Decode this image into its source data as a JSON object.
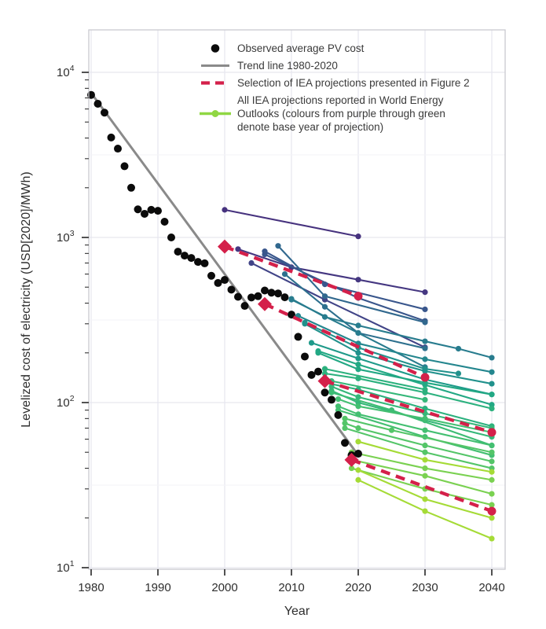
{
  "figure": {
    "xlabel": "Year",
    "ylabel": "Levelized cost of electricity (USD[2020]/MWh)"
  },
  "legend": {
    "items": [
      {
        "key": "observed",
        "label_lines": [
          "Observed average PV cost"
        ]
      },
      {
        "key": "trend",
        "label_lines": [
          "Trend line 1980-2020"
        ]
      },
      {
        "key": "selection",
        "label_lines": [
          "Selection of IEA projections presented in Figure 2"
        ]
      },
      {
        "key": "all",
        "label_lines": [
          "All IEA projections reported in World Energy",
          "Outlooks (colours from purple through green",
          "denote base year of projection)"
        ]
      }
    ]
  },
  "chart_data": {
    "type": "line",
    "title": "",
    "xlabel": "Year",
    "ylabel": "Levelized cost of electricity (USD[2020]/MWh)",
    "x_ticks": [
      1980,
      1990,
      2000,
      2010,
      2020,
      2030,
      2040
    ],
    "y_scale": "log",
    "y_ticks": [
      10,
      100,
      1000,
      10000
    ],
    "xlim": [
      1979.6,
      2042
    ],
    "ylim": [
      9.8,
      18000
    ],
    "grid": true,
    "legend_position": "top-right-inside",
    "colors": {
      "observed": "#0b0b0b",
      "trend": "#8a8a8a",
      "selection": "#d4204a",
      "legend_all_sample": "#90d743"
    },
    "observed": {
      "label": "Observed average PV cost",
      "points": [
        [
          1980,
          7300
        ],
        [
          1981,
          6450
        ],
        [
          1982,
          5700
        ],
        [
          1983,
          4030
        ],
        [
          1984,
          3450
        ],
        [
          1985,
          2700
        ],
        [
          1986,
          2000
        ],
        [
          1987,
          1480
        ],
        [
          1988,
          1390
        ],
        [
          1989,
          1470
        ],
        [
          1990,
          1450
        ],
        [
          1991,
          1245
        ],
        [
          1992,
          1000
        ],
        [
          1993,
          820
        ],
        [
          1994,
          776
        ],
        [
          1995,
          751
        ],
        [
          1996,
          711
        ],
        [
          1997,
          697
        ],
        [
          1998,
          586
        ],
        [
          1999,
          530
        ],
        [
          2000,
          553
        ],
        [
          2001,
          483
        ],
        [
          2002,
          437
        ],
        [
          2003,
          385
        ],
        [
          2004,
          433
        ],
        [
          2005,
          441
        ],
        [
          2006,
          477
        ],
        [
          2007,
          463
        ],
        [
          2008,
          458
        ],
        [
          2009,
          434
        ],
        [
          2010,
          341
        ],
        [
          2011,
          250
        ],
        [
          2012,
          190
        ],
        [
          2013,
          147
        ],
        [
          2014,
          154
        ],
        [
          2015,
          115
        ],
        [
          2016,
          104
        ],
        [
          2017,
          84
        ],
        [
          2018,
          57
        ],
        [
          2019,
          48
        ],
        [
          2020,
          49
        ]
      ]
    },
    "trend": {
      "label": "Trend line 1980-2020",
      "points": [
        [
          1980,
          7500
        ],
        [
          2020,
          48
        ]
      ]
    },
    "selection": {
      "label": "Selection of IEA projections presented in Figure 2",
      "lines": [
        {
          "points": [
            [
              2000,
              880
            ],
            [
              2020,
              441
            ]
          ]
        },
        {
          "points": [
            [
              2006,
              395
            ],
            [
              2030,
              142
            ]
          ]
        },
        {
          "points": [
            [
              2015,
              135
            ],
            [
              2040,
              66
            ]
          ]
        },
        {
          "points": [
            [
              2019,
              45
            ],
            [
              2040,
              22
            ]
          ]
        }
      ]
    },
    "projections": {
      "label": "All IEA projections reported in World Energy Outlooks (colours from purple through green denote base year of projection)",
      "lines": [
        {
          "base_year": 2000,
          "color": "#46327e",
          "points": [
            [
              2000,
              1470
            ],
            [
              2020,
              1015
            ]
          ]
        },
        {
          "base_year": 2002,
          "color": "#453781",
          "points": [
            [
              2002,
              850
            ],
            [
              2010,
              660
            ],
            [
              2020,
              555
            ],
            [
              2030,
              466
            ]
          ]
        },
        {
          "base_year": 2004,
          "color": "#414487",
          "points": [
            [
              2004,
              700
            ],
            [
              2015,
              420
            ],
            [
              2030,
              216
            ]
          ]
        },
        {
          "base_year": 2006,
          "color": "#39568c",
          "points": [
            [
              2006,
              824
            ],
            [
              2015,
              520
            ],
            [
              2030,
              367
            ]
          ]
        },
        {
          "base_year": 2006,
          "color": "#39568c",
          "points": [
            [
              2006,
              790
            ],
            [
              2020,
              430
            ],
            [
              2030,
              312
            ]
          ]
        },
        {
          "base_year": 2008,
          "color": "#31688e",
          "points": [
            [
              2008,
              889
            ],
            [
              2015,
              441
            ],
            [
              2030,
              306
            ]
          ]
        },
        {
          "base_year": 2009,
          "color": "#2d708e",
          "points": [
            [
              2009,
              600
            ],
            [
              2015,
              380
            ],
            [
              2020,
              264
            ],
            [
              2030,
              213
            ]
          ]
        },
        {
          "base_year": 2010,
          "color": "#287c8e",
          "points": [
            [
              2010,
              425
            ],
            [
              2015,
              330
            ],
            [
              2020,
              293
            ],
            [
              2030,
              235
            ],
            [
              2035,
              212
            ],
            [
              2040,
              187
            ]
          ]
        },
        {
          "base_year": 2010,
          "color": "#287c8e",
          "points": [
            [
              2010,
              420
            ],
            [
              2020,
              264
            ],
            [
              2030,
              164
            ]
          ]
        },
        {
          "base_year": 2011,
          "color": "#24868e",
          "points": [
            [
              2011,
              335
            ],
            [
              2020,
              228
            ],
            [
              2030,
              183
            ],
            [
              2040,
              153
            ]
          ]
        },
        {
          "base_year": 2012,
          "color": "#21918c",
          "points": [
            [
              2012,
              305
            ],
            [
              2020,
              215
            ],
            [
              2030,
              160
            ],
            [
              2035,
              150
            ]
          ]
        },
        {
          "base_year": 2012,
          "color": "#21918c",
          "points": [
            [
              2012,
              300
            ],
            [
              2020,
              200
            ],
            [
              2030,
              155
            ],
            [
              2040,
              130
            ]
          ]
        },
        {
          "base_year": 2013,
          "color": "#1f9a8a",
          "points": [
            [
              2013,
              230
            ],
            [
              2020,
              185
            ],
            [
              2030,
              138
            ],
            [
              2040,
              112
            ]
          ]
        },
        {
          "base_year": 2014,
          "color": "#22a884",
          "points": [
            [
              2014,
              205
            ],
            [
              2020,
              170
            ],
            [
              2030,
              128
            ],
            [
              2040,
              97
            ]
          ]
        },
        {
          "base_year": 2014,
          "color": "#22a884",
          "points": [
            [
              2014,
              200
            ],
            [
              2020,
              159
            ],
            [
              2030,
              132
            ],
            [
              2040,
              112
            ]
          ]
        },
        {
          "base_year": 2015,
          "color": "#2cb17e",
          "points": [
            [
              2015,
              150
            ],
            [
              2020,
              140
            ],
            [
              2030,
              115
            ],
            [
              2040,
              92
            ]
          ]
        },
        {
          "base_year": 2015,
          "color": "#2cb17e",
          "points": [
            [
              2015,
              160
            ],
            [
              2030,
              120
            ]
          ]
        },
        {
          "base_year": 2015,
          "color": "#2cb17e",
          "points": [
            [
              2015,
              132
            ],
            [
              2020,
              120
            ],
            [
              2030,
              92
            ],
            [
              2040,
              72
            ]
          ]
        },
        {
          "base_year": 2016,
          "color": "#35b779",
          "points": [
            [
              2016,
              125
            ],
            [
              2020,
              108
            ],
            [
              2030,
              86
            ],
            [
              2040,
              70
            ]
          ]
        },
        {
          "base_year": 2016,
          "color": "#35b779",
          "points": [
            [
              2016,
              118
            ],
            [
              2020,
              100
            ],
            [
              2030,
              78
            ],
            [
              2040,
              62
            ]
          ]
        },
        {
          "base_year": 2016,
          "color": "#35b779",
          "points": [
            [
              2016,
              135
            ],
            [
              2030,
              104
            ]
          ]
        },
        {
          "base_year": 2016,
          "color": "#3dbc74",
          "points": [
            [
              2016,
              115
            ],
            [
              2025,
              90
            ],
            [
              2040,
              55
            ]
          ]
        },
        {
          "base_year": 2017,
          "color": "#43bf71",
          "points": [
            [
              2017,
              105
            ],
            [
              2020,
              95
            ],
            [
              2030,
              80
            ],
            [
              2040,
              66
            ]
          ]
        },
        {
          "base_year": 2017,
          "color": "#43bf71",
          "points": [
            [
              2017,
              95
            ],
            [
              2020,
              85
            ],
            [
              2030,
              68
            ],
            [
              2040,
              55
            ]
          ]
        },
        {
          "base_year": 2017,
          "color": "#43bf71",
          "points": [
            [
              2017,
              90
            ],
            [
              2030,
              62
            ],
            [
              2040,
              48
            ]
          ]
        },
        {
          "base_year": 2018,
          "color": "#54c568",
          "points": [
            [
              2018,
              80
            ],
            [
              2025,
              68
            ],
            [
              2040,
              50
            ]
          ]
        },
        {
          "base_year": 2018,
          "color": "#54c568",
          "points": [
            [
              2018,
              75
            ],
            [
              2020,
              70
            ],
            [
              2030,
              55
            ],
            [
              2040,
              44
            ]
          ]
        },
        {
          "base_year": 2018,
          "color": "#54c568",
          "points": [
            [
              2018,
              70
            ],
            [
              2030,
              50
            ],
            [
              2040,
              40
            ]
          ]
        },
        {
          "base_year": 2019,
          "color": "#7ad151",
          "points": [
            [
              2019,
              50
            ],
            [
              2030,
              40
            ],
            [
              2040,
              34
            ]
          ]
        },
        {
          "base_year": 2019,
          "color": "#7ad151",
          "points": [
            [
              2019,
              45
            ],
            [
              2030,
              36
            ],
            [
              2040,
              28
            ]
          ]
        },
        {
          "base_year": 2019,
          "color": "#7ad151",
          "points": [
            [
              2019,
              40
            ],
            [
              2030,
              30
            ],
            [
              2040,
              24
            ]
          ]
        },
        {
          "base_year": 2020,
          "color": "#a5db36",
          "points": [
            [
              2020,
              58
            ],
            [
              2030,
              45
            ],
            [
              2040,
              38
            ]
          ]
        },
        {
          "base_year": 2020,
          "color": "#a5db36",
          "points": [
            [
              2020,
              39
            ],
            [
              2030,
              26
            ],
            [
              2040,
              20
            ]
          ]
        },
        {
          "base_year": 2020,
          "color": "#a5db36",
          "points": [
            [
              2020,
              34
            ],
            [
              2030,
              22
            ],
            [
              2040,
              15
            ]
          ]
        }
      ]
    }
  }
}
